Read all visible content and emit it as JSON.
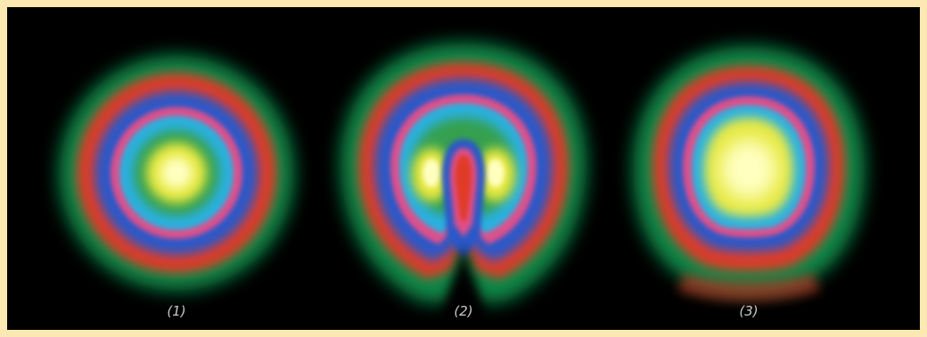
{
  "figure": {
    "frame_color": "#fce8b2",
    "background_color": "#000000",
    "ring_colors": [
      "#0a8a4a",
      "#e03a28",
      "#2a58c8",
      "#e0508a",
      "#2ab0e0",
      "#e6e840",
      "#ffffc0"
    ],
    "panels": [
      {
        "label": "(1)",
        "shape": "concentric-circles"
      },
      {
        "label": "(2)",
        "shape": "horseshoe-with-notch"
      },
      {
        "label": "(3)",
        "shape": "flattened-bottom-disk"
      }
    ]
  }
}
